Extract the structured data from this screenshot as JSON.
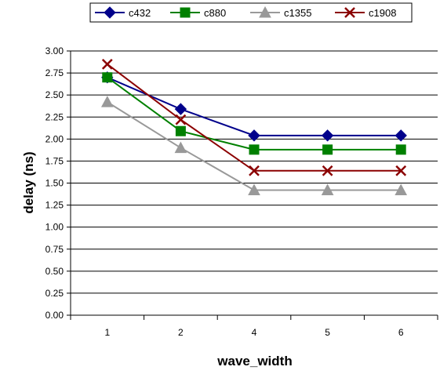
{
  "chart_data": {
    "type": "line",
    "title": "",
    "xlabel": "wave_width",
    "ylabel": "delay (ns)",
    "categories": [
      "1",
      "2",
      "4",
      "5",
      "6"
    ],
    "ylim": [
      0,
      3
    ],
    "yticks": [
      "0.00",
      "0.25",
      "0.50",
      "0.75",
      "1.00",
      "1.25",
      "1.50",
      "1.75",
      "2.00",
      "2.25",
      "2.50",
      "2.75",
      "3.00"
    ],
    "grid": "horizontal",
    "legend_position": "top",
    "series": [
      {
        "name": "c432",
        "color": "#00008b",
        "marker": "diamond",
        "values": [
          2.7,
          2.34,
          2.04,
          2.04,
          2.04
        ]
      },
      {
        "name": "c880",
        "color": "#008000",
        "marker": "square",
        "values": [
          2.7,
          2.09,
          1.88,
          1.88,
          1.88
        ]
      },
      {
        "name": "c1355",
        "color": "#999999",
        "marker": "triangle",
        "values": [
          2.42,
          1.9,
          1.42,
          1.42,
          1.42
        ]
      },
      {
        "name": "c1908",
        "color": "#8b0000",
        "marker": "x",
        "values": [
          2.85,
          2.22,
          1.64,
          1.64,
          1.64
        ]
      }
    ]
  }
}
